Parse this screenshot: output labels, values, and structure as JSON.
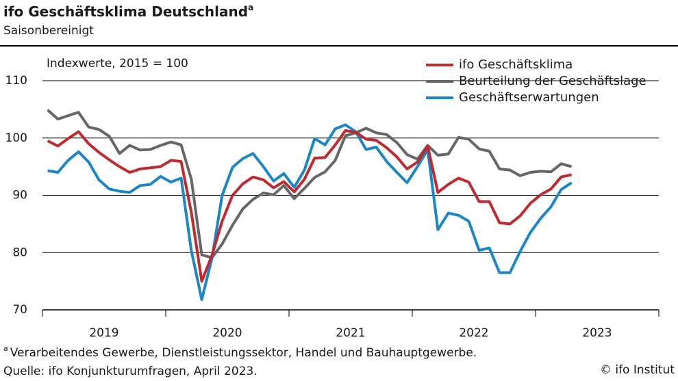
{
  "chart_data": {
    "type": "line",
    "title": "ifo Geschäftsklima Deutschland",
    "title_mark": "a",
    "subtitle": "Saisonbereinigt",
    "y_label": "Indexwerte, 2015 = 100",
    "x": [
      2019.042,
      2019.125,
      2019.208,
      2019.292,
      2019.375,
      2019.458,
      2019.542,
      2019.625,
      2019.708,
      2019.792,
      2019.875,
      2019.958,
      2020.042,
      2020.125,
      2020.208,
      2020.292,
      2020.375,
      2020.458,
      2020.542,
      2020.625,
      2020.708,
      2020.792,
      2020.875,
      2020.958,
      2021.042,
      2021.125,
      2021.208,
      2021.292,
      2021.375,
      2021.458,
      2021.542,
      2021.625,
      2021.708,
      2021.792,
      2021.875,
      2021.958,
      2022.042,
      2022.125,
      2022.208,
      2022.292,
      2022.375,
      2022.458,
      2022.542,
      2022.625,
      2022.708,
      2022.792,
      2022.875,
      2022.958,
      2023.042,
      2023.125,
      2023.208,
      2023.292
    ],
    "series": [
      {
        "name": "ifo Geschäftsklima",
        "color": "#c0292e",
        "values": [
          99.5,
          98.6,
          99.9,
          101.1,
          99.0,
          97.5,
          96.2,
          95.0,
          94.0,
          94.6,
          94.8,
          95.0,
          96.1,
          95.9,
          87.0,
          75.0,
          79.5,
          85.5,
          90.0,
          92.0,
          93.2,
          92.7,
          91.3,
          92.4,
          90.6,
          92.8,
          96.5,
          96.6,
          98.8,
          101.3,
          101.0,
          99.8,
          99.6,
          98.3,
          96.7,
          94.6,
          95.8,
          98.6,
          90.5,
          91.9,
          93.0,
          92.3,
          88.9,
          88.9,
          85.2,
          85.0,
          86.4,
          88.6,
          90.1,
          91.1,
          93.2,
          93.6
        ]
      },
      {
        "name": "Beurteilung der Geschäftslage",
        "color": "#666666",
        "values": [
          104.9,
          103.3,
          103.9,
          104.5,
          101.9,
          101.5,
          100.3,
          97.3,
          98.7,
          97.9,
          98.0,
          98.7,
          99.3,
          98.8,
          92.8,
          79.6,
          79.1,
          81.5,
          84.8,
          87.6,
          89.3,
          90.4,
          90.1,
          91.7,
          89.4,
          91.2,
          93.1,
          94.1,
          96.1,
          100.4,
          100.9,
          101.7,
          100.9,
          100.6,
          99.2,
          97.1,
          96.3,
          98.7,
          97.0,
          97.2,
          100.1,
          99.8,
          98.1,
          97.7,
          94.6,
          94.4,
          93.4,
          94.0,
          94.2,
          94.1,
          95.5,
          95.0
        ]
      },
      {
        "name": "Geschäftserwartungen",
        "color": "#1a86c8",
        "values": [
          94.3,
          94.0,
          96.1,
          97.6,
          95.8,
          92.7,
          91.1,
          90.7,
          90.5,
          91.7,
          91.9,
          93.3,
          92.3,
          93.0,
          80.3,
          71.8,
          79.0,
          90.0,
          94.9,
          96.4,
          97.3,
          95.0,
          92.5,
          93.8,
          91.4,
          94.4,
          99.9,
          98.8,
          101.6,
          102.3,
          101.1,
          98.0,
          98.4,
          95.9,
          94.0,
          92.2,
          95.0,
          98.0,
          84.0,
          86.9,
          86.5,
          85.5,
          80.4,
          80.8,
          76.5,
          76.5,
          80.2,
          83.5,
          86.0,
          88.0,
          91.0,
          92.2
        ]
      }
    ],
    "xlim": [
      2019,
      2024
    ],
    "xticks": [
      {
        "value": 2019.5,
        "label": "2019"
      },
      {
        "value": 2020.5,
        "label": "2020"
      },
      {
        "value": 2021.5,
        "label": "2021"
      },
      {
        "value": 2022.5,
        "label": "2022"
      },
      {
        "value": 2023.5,
        "label": "2023"
      }
    ],
    "year_boundaries": [
      2020,
      2021,
      2022,
      2023
    ],
    "ylim": [
      70,
      110
    ],
    "yticks": [
      70,
      80,
      90,
      100,
      110
    ],
    "grid": true,
    "legend": "top-right",
    "footnote_mark": "a",
    "footnote": "Verarbeitendes Gewerbe, Dienstleistungssektor, Handel und Bauhauptgewerbe.",
    "source": "Quelle: ifo Konjunkturumfragen, April 2023.",
    "credit": "© ifo Institut"
  }
}
